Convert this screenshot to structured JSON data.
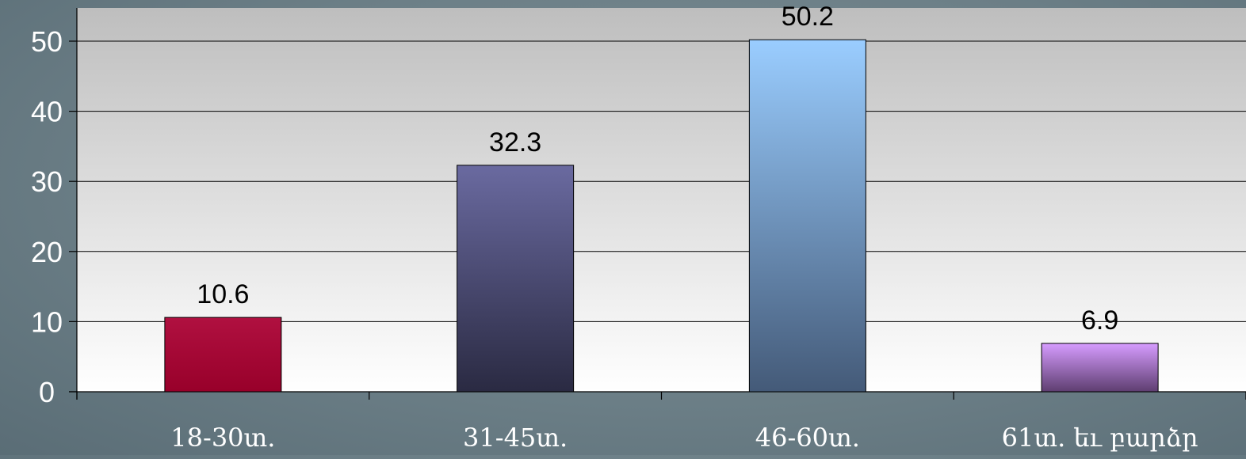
{
  "chart_data": {
    "type": "bar",
    "categories": [
      "18-30տ.",
      "31-45տ.",
      "46-60տ.",
      "61տ. եւ բարձր"
    ],
    "values": [
      10.6,
      32.3,
      50.2,
      6.9
    ],
    "data_labels": [
      "10.6",
      "32.3",
      "50.2",
      "6.9"
    ],
    "ylim": [
      0,
      55
    ],
    "yticks": [
      0,
      10,
      20,
      30,
      40,
      50
    ],
    "grid": true,
    "legend": "none",
    "bar_gradients": [
      [
        "#b01040",
        "#98002a"
      ],
      [
        "#6a6aa0",
        "#2a2a42"
      ],
      [
        "#9acdff",
        "#445a78"
      ],
      [
        "#d69cff",
        "#5e3e70"
      ]
    ],
    "plot_background": [
      "#bebebe",
      "#ffffff"
    ],
    "title": "",
    "xlabel": "",
    "ylabel": ""
  }
}
